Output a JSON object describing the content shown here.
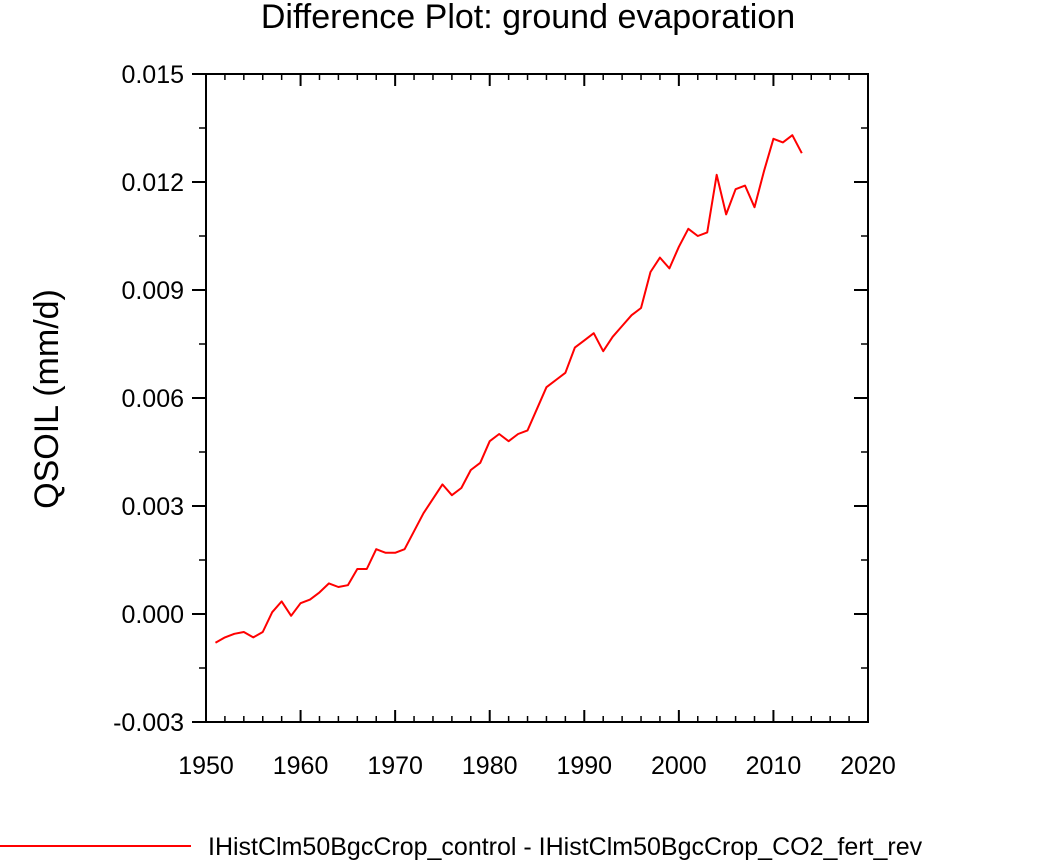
{
  "chart_data": {
    "type": "line",
    "title": "Difference Plot: ground evaporation",
    "ylabel": "QSOIL  (mm/d)",
    "xlabel": "",
    "xlim": [
      1950,
      2020
    ],
    "ylim": [
      -0.003,
      0.015
    ],
    "x_ticks": [
      1950,
      1960,
      1970,
      1980,
      1990,
      2000,
      2010,
      2020
    ],
    "y_ticks": [
      "-0.003",
      "0.000",
      "0.003",
      "0.006",
      "0.009",
      "0.012",
      "0.015"
    ],
    "y_tick_values": [
      -0.003,
      0.0,
      0.003,
      0.006,
      0.009,
      0.012,
      0.015
    ],
    "grid": false,
    "legend": "bottom",
    "series": [
      {
        "name": "IHistClm50BgcCrop_control - IHistClm50BgcCrop_CO2_fert_rev",
        "color": "#ff0000",
        "x": [
          1951,
          1952,
          1953,
          1954,
          1955,
          1956,
          1957,
          1958,
          1959,
          1960,
          1961,
          1962,
          1963,
          1964,
          1965,
          1966,
          1967,
          1968,
          1969,
          1970,
          1971,
          1972,
          1973,
          1974,
          1975,
          1976,
          1977,
          1978,
          1979,
          1980,
          1981,
          1982,
          1983,
          1984,
          1985,
          1986,
          1987,
          1988,
          1989,
          1990,
          1991,
          1992,
          1993,
          1994,
          1995,
          1996,
          1997,
          1998,
          1999,
          2000,
          2001,
          2002,
          2003,
          2004,
          2005,
          2006,
          2007,
          2008,
          2009,
          2010,
          2011,
          2012,
          2013
        ],
        "y": [
          -0.0008,
          -0.00065,
          -0.00055,
          -0.0005,
          -0.00065,
          -0.0005,
          5e-05,
          0.00035,
          -5e-05,
          0.0003,
          0.0004,
          0.0006,
          0.00085,
          0.00075,
          0.0008,
          0.00125,
          0.00125,
          0.0018,
          0.0017,
          0.0017,
          0.0018,
          0.0023,
          0.0028,
          0.0032,
          0.0036,
          0.0033,
          0.0035,
          0.004,
          0.0042,
          0.0048,
          0.005,
          0.0048,
          0.005,
          0.0051,
          0.0057,
          0.0063,
          0.0065,
          0.0067,
          0.0074,
          0.0076,
          0.0078,
          0.0073,
          0.0077,
          0.008,
          0.0083,
          0.0085,
          0.0095,
          0.0099,
          0.0096,
          0.0102,
          0.0107,
          0.0105,
          0.0106,
          0.0122,
          0.0111,
          0.0118,
          0.0119,
          0.0113,
          0.0123,
          0.0132,
          0.0131,
          0.0133,
          0.0128
        ]
      }
    ]
  }
}
